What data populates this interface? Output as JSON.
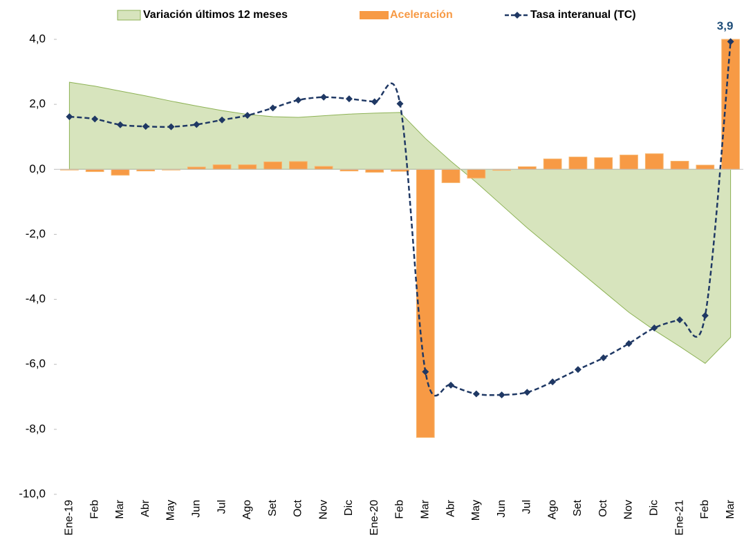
{
  "chart_data": {
    "type": "combo",
    "categories": [
      "Ene-19",
      "Feb",
      "Mar",
      "Abr",
      "May",
      "Jun",
      "Jul",
      "Ago",
      "Set",
      "Oct",
      "Nov",
      "Dic",
      "Ene-20",
      "Feb",
      "Mar",
      "Abr",
      "May",
      "Jun",
      "Jul",
      "Ago",
      "Set",
      "Oct",
      "Nov",
      "Dic",
      "Ene-21",
      "Feb",
      "Mar"
    ],
    "ylim": [
      -10,
      4
    ],
    "yticks": [
      {
        "value": -10,
        "label": "-10,0"
      },
      {
        "value": -8,
        "label": "-8,0"
      },
      {
        "value": -6,
        "label": "-6,0"
      },
      {
        "value": -4,
        "label": "-4,0"
      },
      {
        "value": -2,
        "label": "-2,0"
      },
      {
        "value": 0,
        "label": "0,0"
      },
      {
        "value": 2,
        "label": "2,0"
      },
      {
        "value": 4,
        "label": "4,0"
      }
    ],
    "legend": "top",
    "series": [
      {
        "name": "Variación últimos 12 meses",
        "type": "area",
        "color": "#d7e4bd",
        "stroke": "#8db255",
        "values": [
          2.68,
          2.56,
          2.41,
          2.26,
          2.1,
          1.95,
          1.81,
          1.69,
          1.62,
          1.6,
          1.65,
          1.7,
          1.73,
          1.75,
          0.95,
          0.25,
          -0.4,
          -1.1,
          -1.8,
          -2.45,
          -3.1,
          -3.75,
          -4.4,
          -4.95,
          -5.45,
          -5.97,
          -5.17
        ]
      },
      {
        "name": "Aceleración",
        "type": "bar",
        "color": "#f79a45",
        "values": [
          -0.02,
          -0.07,
          -0.18,
          -0.05,
          -0.01,
          0.07,
          0.14,
          0.14,
          0.23,
          0.24,
          0.09,
          -0.05,
          -0.09,
          -0.06,
          -8.25,
          -0.41,
          -0.27,
          -0.03,
          0.08,
          0.32,
          0.38,
          0.36,
          0.44,
          0.48,
          0.25,
          0.13,
          4.0
        ]
      },
      {
        "name": "Tasa interanual (TC)",
        "type": "line",
        "color": "#1f3864",
        "values": [
          1.62,
          1.55,
          1.37,
          1.32,
          1.31,
          1.38,
          1.52,
          1.66,
          1.89,
          2.13,
          2.22,
          2.17,
          2.08,
          2.02,
          -6.23,
          -6.64,
          -6.91,
          -6.94,
          -6.86,
          -6.54,
          -6.16,
          -5.8,
          -5.36,
          -4.88,
          -4.63,
          -4.5,
          3.93
        ],
        "value_labels": [
          null,
          null,
          null,
          null,
          null,
          null,
          null,
          null,
          null,
          null,
          null,
          null,
          null,
          null,
          null,
          null,
          null,
          null,
          null,
          null,
          null,
          null,
          null,
          null,
          null,
          null,
          "3,9"
        ]
      }
    ]
  }
}
